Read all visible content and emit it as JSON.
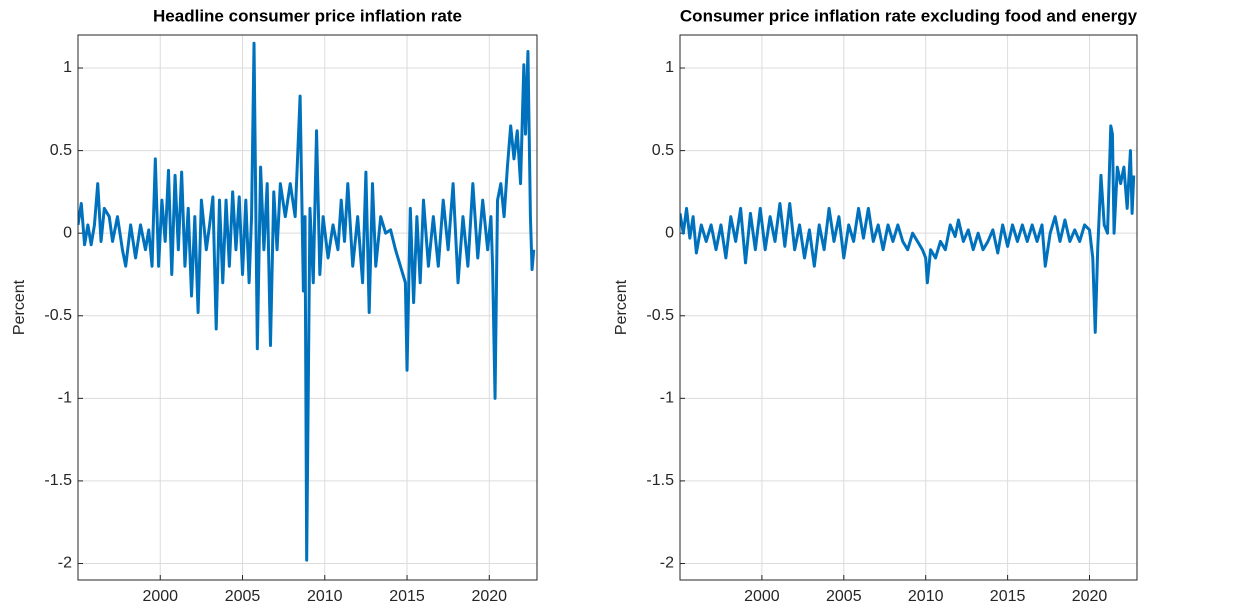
{
  "chart_data": [
    {
      "type": "line",
      "title": "Headline consumer price inflation rate",
      "y_label": "Percent",
      "color": "#0072bd",
      "grid": true,
      "xlim": [
        1995,
        2022.9
      ],
      "ylim": [
        -2.1,
        1.2
      ],
      "xticks": [
        2000,
        2005,
        2010,
        2015,
        2020
      ],
      "yticks": [
        -2,
        -1.5,
        -1,
        -0.5,
        0,
        0.5,
        1
      ],
      "x": [
        1995.0,
        1995.2,
        1995.4,
        1995.6,
        1995.8,
        1996.0,
        1996.2,
        1996.4,
        1996.6,
        1996.9,
        1997.1,
        1997.4,
        1997.7,
        1997.9,
        1998.2,
        1998.5,
        1998.8,
        1999.1,
        1999.3,
        1999.5,
        1999.7,
        1999.9,
        2000.1,
        2000.3,
        2000.5,
        2000.7,
        2000.9,
        2001.1,
        2001.3,
        2001.5,
        2001.7,
        2001.9,
        2002.1,
        2002.3,
        2002.5,
        2002.8,
        2003.0,
        2003.2,
        2003.4,
        2003.6,
        2003.8,
        2004.0,
        2004.2,
        2004.4,
        2004.6,
        2004.8,
        2005.0,
        2005.2,
        2005.4,
        2005.55,
        2005.7,
        2005.9,
        2006.1,
        2006.3,
        2006.5,
        2006.7,
        2006.9,
        2007.1,
        2007.3,
        2007.6,
        2007.9,
        2008.2,
        2008.5,
        2008.7,
        2008.8,
        2008.9,
        2009.1,
        2009.3,
        2009.5,
        2009.7,
        2009.9,
        2010.2,
        2010.5,
        2010.8,
        2011.0,
        2011.2,
        2011.4,
        2011.7,
        2012.0,
        2012.3,
        2012.5,
        2012.7,
        2012.9,
        2013.1,
        2013.4,
        2013.7,
        2014.0,
        2014.3,
        2014.6,
        2014.9,
        2015.0,
        2015.2,
        2015.4,
        2015.6,
        2015.8,
        2016.0,
        2016.3,
        2016.6,
        2016.9,
        2017.2,
        2017.5,
        2017.8,
        2018.1,
        2018.4,
        2018.7,
        2019.0,
        2019.3,
        2019.6,
        2019.9,
        2020.1,
        2020.2,
        2020.35,
        2020.5,
        2020.7,
        2020.9,
        2021.1,
        2021.3,
        2021.5,
        2021.7,
        2021.9,
        2022.1,
        2022.2,
        2022.35,
        2022.5,
        2022.6,
        2022.7
      ],
      "values": [
        0.05,
        0.18,
        -0.07,
        0.05,
        -0.07,
        0.05,
        0.3,
        -0.05,
        0.15,
        0.1,
        -0.05,
        0.1,
        -0.1,
        -0.2,
        0.05,
        -0.15,
        0.05,
        -0.1,
        0.02,
        -0.2,
        0.45,
        -0.2,
        0.2,
        -0.05,
        0.38,
        -0.25,
        0.35,
        -0.1,
        0.37,
        -0.2,
        0.15,
        -0.38,
        0.1,
        -0.48,
        0.2,
        -0.1,
        0.05,
        0.22,
        -0.58,
        0.2,
        -0.3,
        0.2,
        -0.2,
        0.25,
        -0.1,
        0.22,
        -0.25,
        0.2,
        -0.3,
        0.1,
        1.15,
        -0.7,
        0.4,
        -0.1,
        0.3,
        -0.68,
        0.25,
        -0.1,
        0.3,
        0.1,
        0.3,
        0.1,
        0.83,
        -0.35,
        0.1,
        -1.98,
        0.15,
        -0.3,
        0.62,
        -0.25,
        0.1,
        -0.15,
        0.05,
        -0.1,
        0.2,
        -0.05,
        0.3,
        -0.2,
        0.1,
        -0.3,
        0.37,
        -0.48,
        0.3,
        -0.2,
        0.1,
        0.0,
        0.02,
        -0.1,
        -0.2,
        -0.3,
        -0.83,
        0.15,
        -0.42,
        0.1,
        -0.3,
        0.2,
        -0.2,
        0.1,
        -0.2,
        0.2,
        -0.1,
        0.3,
        -0.3,
        0.1,
        -0.2,
        0.3,
        -0.15,
        0.2,
        -0.1,
        0.1,
        -0.2,
        -1.0,
        0.2,
        0.3,
        0.1,
        0.4,
        0.65,
        0.45,
        0.62,
        0.3,
        1.02,
        0.6,
        1.1,
        0.1,
        -0.22,
        -0.1
      ]
    },
    {
      "type": "line",
      "title": "Consumer price inflation rate excluding food and energy",
      "y_label": "Percent",
      "color": "#0072bd",
      "grid": true,
      "xlim": [
        1995,
        2022.9
      ],
      "ylim": [
        -2.1,
        1.2
      ],
      "xticks": [
        2000,
        2005,
        2010,
        2015,
        2020
      ],
      "yticks": [
        -2,
        -1.5,
        -1,
        -0.5,
        0,
        0.5,
        1
      ],
      "x": [
        1995.0,
        1995.2,
        1995.4,
        1995.6,
        1995.8,
        1996.0,
        1996.3,
        1996.6,
        1996.9,
        1997.2,
        1997.5,
        1997.8,
        1998.1,
        1998.4,
        1998.7,
        1999.0,
        1999.3,
        1999.6,
        1999.9,
        2000.2,
        2000.5,
        2000.8,
        2001.1,
        2001.4,
        2001.7,
        2002.0,
        2002.3,
        2002.6,
        2002.9,
        2003.2,
        2003.5,
        2003.8,
        2004.1,
        2004.4,
        2004.7,
        2005.0,
        2005.3,
        2005.6,
        2005.9,
        2006.2,
        2006.5,
        2006.8,
        2007.1,
        2007.4,
        2007.7,
        2008.0,
        2008.3,
        2008.6,
        2008.9,
        2009.2,
        2009.5,
        2009.8,
        2010.0,
        2010.1,
        2010.3,
        2010.6,
        2010.9,
        2011.2,
        2011.5,
        2011.8,
        2012.0,
        2012.3,
        2012.6,
        2012.9,
        2013.2,
        2013.5,
        2013.8,
        2014.1,
        2014.4,
        2014.7,
        2015.0,
        2015.3,
        2015.6,
        2015.9,
        2016.2,
        2016.5,
        2016.8,
        2017.1,
        2017.3,
        2017.6,
        2017.9,
        2018.2,
        2018.5,
        2018.8,
        2019.1,
        2019.4,
        2019.7,
        2020.0,
        2020.2,
        2020.35,
        2020.5,
        2020.7,
        2020.9,
        2021.1,
        2021.3,
        2021.4,
        2021.5,
        2021.7,
        2021.9,
        2022.1,
        2022.3,
        2022.5,
        2022.6,
        2022.7
      ],
      "values": [
        0.12,
        0.0,
        0.15,
        -0.03,
        0.1,
        -0.12,
        0.05,
        -0.05,
        0.05,
        -0.1,
        0.05,
        -0.15,
        0.1,
        -0.05,
        0.15,
        -0.18,
        0.12,
        -0.1,
        0.15,
        -0.1,
        0.1,
        -0.05,
        0.18,
        -0.08,
        0.18,
        -0.1,
        0.05,
        -0.15,
        0.02,
        -0.2,
        0.05,
        -0.1,
        0.15,
        -0.05,
        0.1,
        -0.15,
        0.05,
        -0.05,
        0.15,
        -0.03,
        0.15,
        -0.05,
        0.05,
        -0.1,
        0.05,
        -0.05,
        0.05,
        -0.05,
        -0.1,
        0.0,
        -0.05,
        -0.1,
        -0.15,
        -0.3,
        -0.1,
        -0.15,
        -0.05,
        -0.1,
        0.05,
        -0.02,
        0.08,
        -0.05,
        0.02,
        -0.1,
        0.0,
        -0.1,
        -0.05,
        0.02,
        -0.12,
        0.05,
        -0.08,
        0.05,
        -0.05,
        0.05,
        -0.05,
        0.05,
        -0.05,
        0.05,
        -0.2,
        0.0,
        0.1,
        -0.05,
        0.08,
        -0.05,
        0.02,
        -0.05,
        0.05,
        0.02,
        -0.15,
        -0.6,
        -0.1,
        0.35,
        0.05,
        0.0,
        0.65,
        0.6,
        0.0,
        0.4,
        0.3,
        0.4,
        0.15,
        0.5,
        0.12,
        0.35
      ]
    }
  ]
}
